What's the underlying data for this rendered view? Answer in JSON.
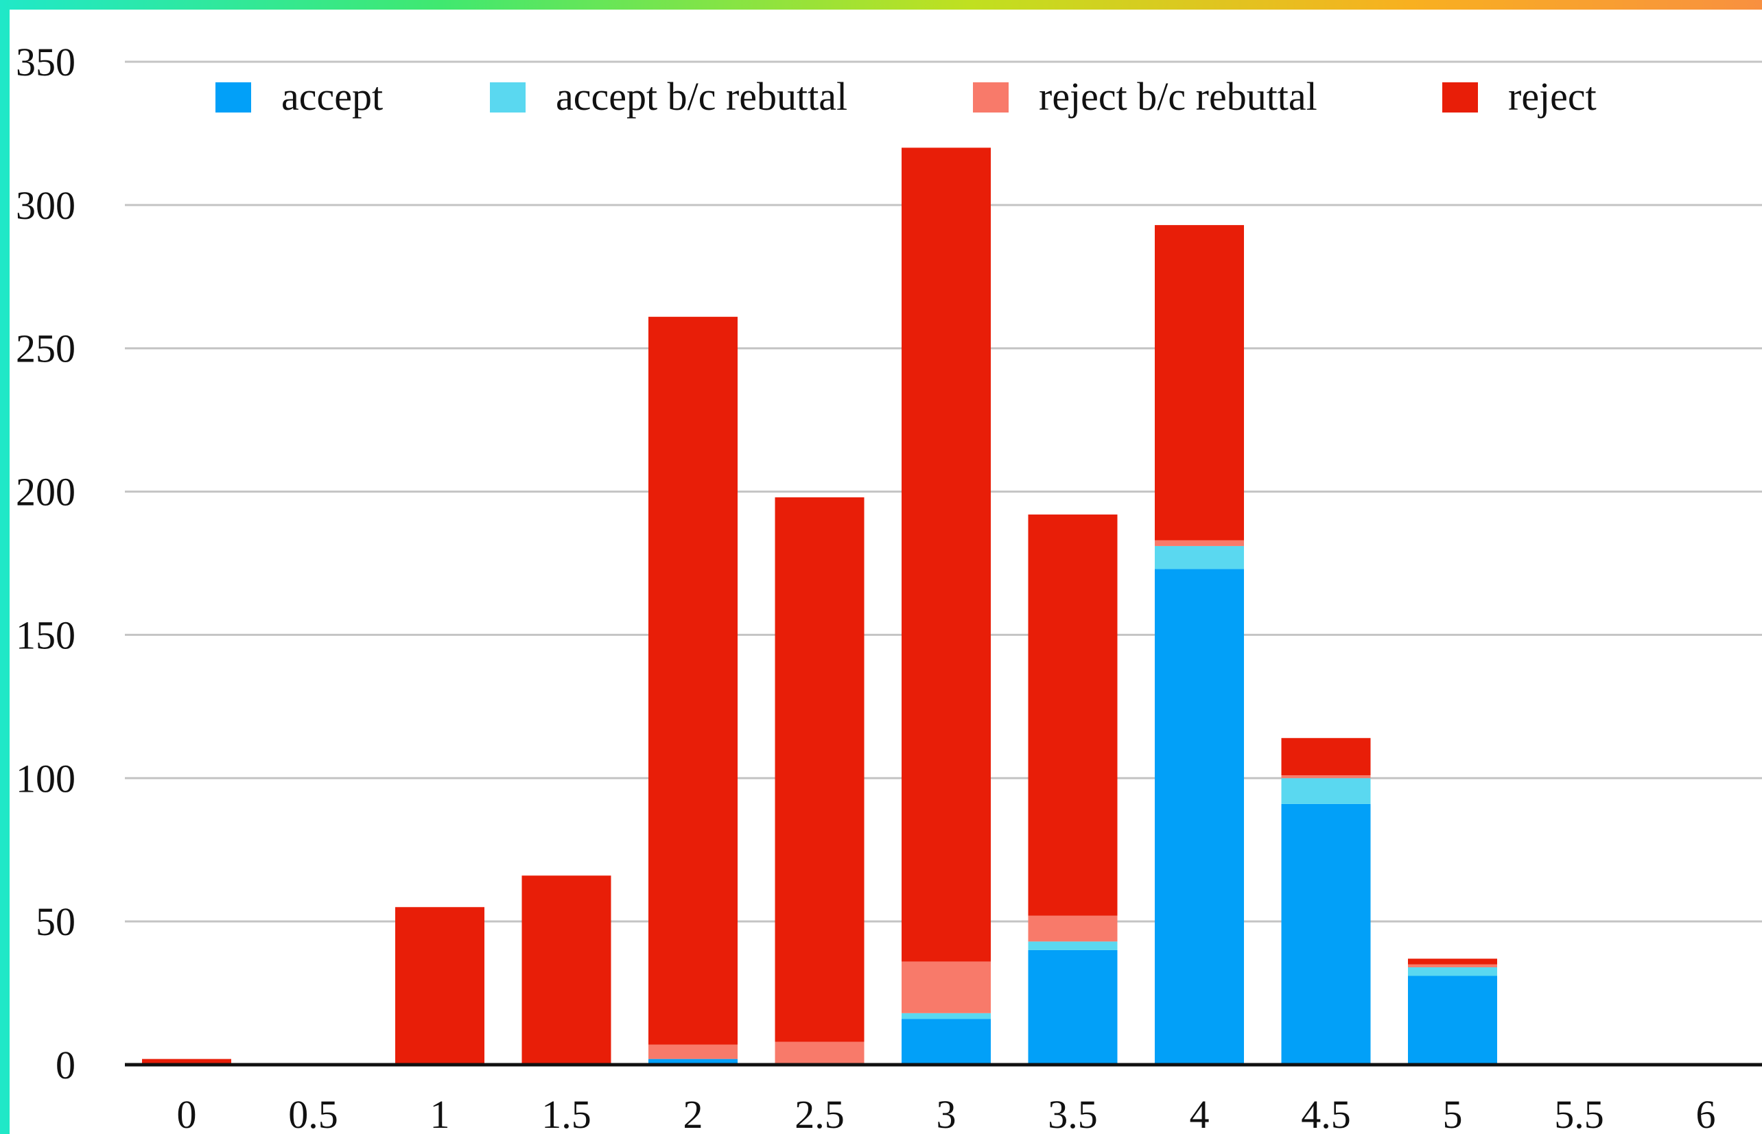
{
  "chart_data": {
    "type": "bar",
    "stacked": true,
    "title": "",
    "xlabel": "",
    "ylabel": "",
    "categories": [
      "0",
      "0.5",
      "1",
      "1.5",
      "2",
      "2.5",
      "3",
      "3.5",
      "4",
      "4.5",
      "5",
      "5.5",
      "6"
    ],
    "ylim": [
      0,
      350
    ],
    "yticks": [
      "0",
      "50",
      "100",
      "150",
      "200",
      "250",
      "300",
      "350"
    ],
    "grid": true,
    "legend_position": "top",
    "series": [
      {
        "name": "accept",
        "color": "#02a0f8",
        "values": [
          0,
          0,
          0,
          0,
          2,
          0,
          16,
          40,
          173,
          91,
          31,
          0,
          0
        ]
      },
      {
        "name": "accept b/c rebuttal",
        "color": "#5ad8f0",
        "values": [
          0,
          0,
          0,
          0,
          0,
          0,
          2,
          3,
          8,
          9,
          3,
          0,
          0
        ]
      },
      {
        "name": "reject b/c rebuttal",
        "color": "#f87a6a",
        "values": [
          0,
          0,
          0,
          0,
          5,
          8,
          18,
          9,
          2,
          1,
          1,
          0,
          0
        ]
      },
      {
        "name": "reject",
        "color": "#e81e08",
        "values": [
          2,
          0,
          55,
          66,
          254,
          190,
          284,
          140,
          110,
          13,
          2,
          0,
          0
        ]
      }
    ]
  }
}
